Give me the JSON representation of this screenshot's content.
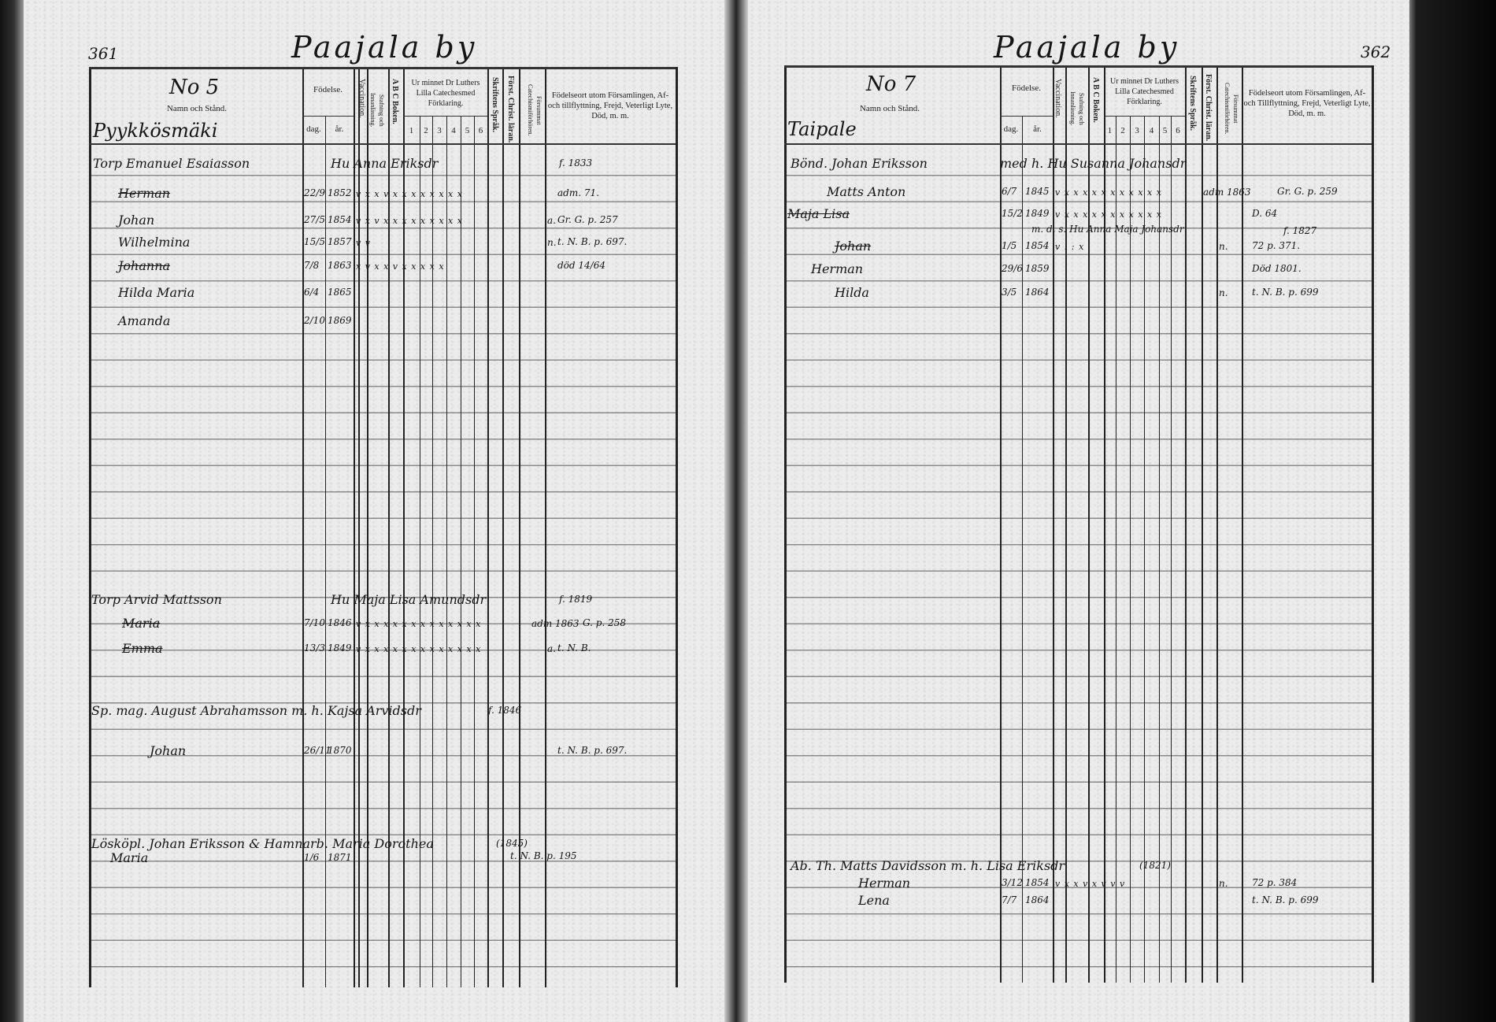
{
  "left_page": {
    "page_number": "361",
    "title": "Paajala by",
    "household_number": "No 5",
    "place": "Pyykkösmäki",
    "headers": {
      "name": "Namn och Stånd.",
      "birth": "Födelse.",
      "day": "dag.",
      "year": "år.",
      "vaccination": "Vaccination.",
      "reading": "Stafning och Innanläsning.",
      "abc": "A B C Boken.",
      "catechism": "Ur minnet Dr Luthers Lilla Catechesmed Förklaring.",
      "catechism_parts": [
        "1",
        "2",
        "3",
        "4",
        "5",
        "6"
      ],
      "scripture": "Skriftens Språk.",
      "christianity": "Först. Christ. läran.",
      "missed": "Försummat Catechismiförhören.",
      "remarks": "Födelseort utom Församlingen, Af- och tillflyttning, Frejd, Veterligt Lyte, Död, m. m."
    },
    "entries": [
      {
        "name": "Torp Emanuel Esaiasson",
        "spouse": "Hu Anna Eriksdr",
        "note": "f. 1833"
      },
      {
        "name": "Herman",
        "day": "22/9",
        "year": "1852",
        "marks": "v x x v  x x x x x x x  x",
        "note": "adm. 71."
      },
      {
        "name": "Johan",
        "day": "27/5",
        "year": "1854",
        "marks": "v x v x  x x x x x x x x",
        "flag": "a.",
        "note": "Gr. G. p. 257"
      },
      {
        "name": "Wilhelmina",
        "day": "15/5",
        "year": "1857",
        "marks": "v  v",
        "flag": "n.",
        "note": "t. N. B. p. 697."
      },
      {
        "name": "Johanna",
        "day": "7/8",
        "year": "1863",
        "marks": "x v x  x v x x x x x",
        "note": "död 14/64"
      },
      {
        "name": "Hilda Maria",
        "day": "6/4",
        "year": "1865"
      },
      {
        "name": "Amanda",
        "day": "2/10",
        "year": "1869"
      },
      {
        "name": "Torp Arvid Mattsson",
        "spouse": "Hu Maja Lisa Amundsdr",
        "note": "f. 1819"
      },
      {
        "name": "Maria",
        "day": "7/10",
        "year": "1846",
        "marks": "v x x x x x x x x x x x x x",
        "flag": "adm 1863",
        "note": "G. p. 258"
      },
      {
        "name": "Emma",
        "day": "13/3",
        "year": "1849",
        "marks": "v x x x x x x x x x x x x x",
        "flag": "a.",
        "note": "t. N. B."
      },
      {
        "name": "Sp. mag. August Abrahamsson m. h. Kajsa Arvidsdr",
        "note": "f. 1846"
      },
      {
        "name": "Johan",
        "day": "26/11",
        "year": "1870",
        "note": "t. N. B. p. 697."
      },
      {
        "name": "Lösköpl. Johan Eriksson & Hamnarb. Maria Dorothea",
        "note": "(1845)",
        "sub_note": "t. N. B. p. 195"
      },
      {
        "name": "Maria",
        "day": "1/6",
        "year": "1871"
      }
    ]
  },
  "right_page": {
    "page_number": "362",
    "title": "Paajala by",
    "household_number": "No 7",
    "place": "Taipale",
    "headers": {
      "name": "Namn och Stånd.",
      "birth": "Födelse.",
      "day": "dag.",
      "year": "år.",
      "vaccination": "Vaccination.",
      "reading": "Stafning och Innanläsning.",
      "abc": "A B C Boken.",
      "catechism": "Ur minnet Dr Luthers Lilla Catechesmed Förklaring.",
      "catechism_parts": [
        "1",
        "2",
        "3",
        "4",
        "5",
        "6"
      ],
      "scripture": "Skriftens Språk.",
      "christianity": "Först. Christ. läran.",
      "missed": "Försummat Catechismiförhören.",
      "remarks": "Födelseort utom Församlingen, Af- och Tillflyttning, Frejd, Veterligt Lyte, Död, m. m."
    },
    "entries": [
      {
        "name": "Bönd. Johan Eriksson",
        "spouse": "med h. Hu Susanna Johansdr"
      },
      {
        "name": "Matts Anton",
        "day": "6/7",
        "year": "1845",
        "marks": "v x x  x x x x x x x  x x",
        "flag": "adm 1863",
        "note": "Gr. G. p. 259"
      },
      {
        "name": "Maja Lisa",
        "day": "15/2",
        "year": "1849",
        "marks": "v x x  x x x x x x x  x x",
        "note": "D. 64"
      },
      {
        "name": "m. d. s. Hu Anna Maja Johansdr",
        "note": "f. 1827"
      },
      {
        "name": "Johan",
        "day": "1/5",
        "year": "1854",
        "marks": "v : :  x",
        "flag": "n.",
        "note": "72 p. 371."
      },
      {
        "name": "Herman",
        "day": "29/6",
        "year": "1859",
        "note": "Död 1801."
      },
      {
        "name": "Hilda",
        "day": "3/5",
        "year": "1864",
        "flag": "n.",
        "note": "t. N. B. p. 699"
      },
      {
        "name": "Ab. Th. Matts Davidsson m. h. Lisa Eriksdr",
        "note": "(1821)"
      },
      {
        "name": "Herman",
        "day": "3/12",
        "year": "1854",
        "marks": "v x x v x v v v",
        "flag": "n.",
        "note": "72 p. 384"
      },
      {
        "name": "Lena",
        "day": "7/7",
        "year": "1864",
        "note": "t. N. B. p. 699"
      }
    ]
  }
}
